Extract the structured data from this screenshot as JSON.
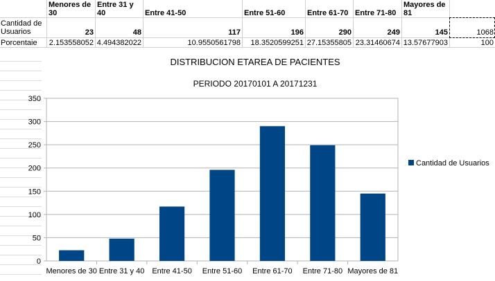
{
  "table": {
    "headers": [
      "Menores de 30",
      "Entre 31 y 40",
      "Entre 41-50",
      "Entre 51-60",
      "Entre 61-70",
      "Entre 71-80",
      "Mayores de 81"
    ],
    "row1_label": "Cantidad de Usuarios",
    "row1_values": [
      "23",
      "48",
      "117",
      "196",
      "290",
      "249",
      "145"
    ],
    "row1_total": "1068",
    "row2_label": "Porcentaie",
    "row2_values": [
      "2.153558052",
      "4.494382022",
      "10.9550561798",
      "18.3520599251",
      "27.15355805",
      "23.31460674",
      "13.57677903"
    ],
    "row2_total": "100"
  },
  "chart_data": {
    "type": "bar",
    "title": "DISTRIBUCION ETAREA DE PACIENTES",
    "subtitle": "PERIODO 20170101 A 20171231",
    "categories": [
      "Menores de 30",
      "Entre 31 y 40",
      "Entre 41-50",
      "Entre 51-60",
      "Entre 61-70",
      "Entre 71-80",
      "Mayores de 81"
    ],
    "series": [
      {
        "name": "Cantidad de Usuarios",
        "values": [
          23,
          48,
          117,
          196,
          290,
          249,
          145
        ],
        "color": "#004586"
      }
    ],
    "ylim": [
      0,
      350
    ],
    "yticks": [
      0,
      50,
      100,
      150,
      200,
      250,
      300,
      350
    ],
    "grid": true,
    "legend": "right"
  }
}
